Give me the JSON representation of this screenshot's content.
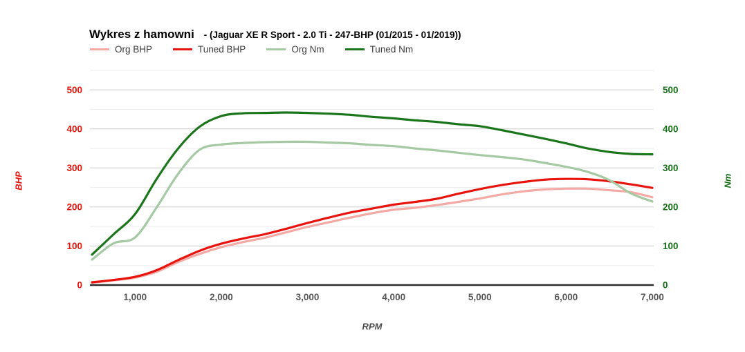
{
  "header": {
    "title": "Wykres z hamowni",
    "subtitle": "- (Jaguar XE R Sport - 2.0 Ti - 247-BHP (01/2015 - 01/2019))"
  },
  "legend": {
    "items": [
      {
        "label": "Org BHP",
        "color": "#f4a9a4"
      },
      {
        "label": "Tuned BHP",
        "color": "#e8130c"
      },
      {
        "label": "Org Nm",
        "color": "#a5c9a3"
      },
      {
        "label": "Tuned Nm",
        "color": "#1b751b"
      }
    ]
  },
  "chart_data": {
    "type": "line",
    "title": "Wykres z hamowni - (Jaguar XE R Sport - 2.0 Ti - 247-BHP (01/2015 - 01/2019))",
    "xlabel": "RPM",
    "x_range": [
      500,
      7000
    ],
    "x_ticks": [
      1000,
      2000,
      3000,
      4000,
      5000,
      6000,
      7000
    ],
    "x_tick_labels": [
      "1,000",
      "2,000",
      "3,000",
      "4,000",
      "5,000",
      "6,000",
      "7,000"
    ],
    "left_axis": {
      "label": "BHP",
      "min": 0,
      "max": 500,
      "headroom_max": 550,
      "ticks": [
        0,
        100,
        200,
        300,
        400,
        500
      ],
      "color": "#e8130c"
    },
    "right_axis": {
      "label": "Nm",
      "min": 0,
      "max": 500,
      "headroom_max": 550,
      "ticks": [
        0,
        100,
        200,
        300,
        400,
        500
      ],
      "color": "#157015"
    },
    "grid": {
      "horizontal": true,
      "vertical": false,
      "minor_step": 50,
      "major_color": "#cccccc",
      "minor_color": "#ededed",
      "baseline_color": "#2b2b2b"
    },
    "legend_position": "top",
    "x": [
      500,
      750,
      1000,
      1250,
      1500,
      1750,
      2000,
      2250,
      2500,
      2750,
      3000,
      3250,
      3500,
      3750,
      4000,
      4250,
      4500,
      4750,
      5000,
      5250,
      5500,
      5750,
      6000,
      6250,
      6500,
      6750,
      7000
    ],
    "series": [
      {
        "name": "Org BHP",
        "axis": "left",
        "color": "#f4a9a4",
        "peak": "247 BHP @ ~6,000 RPM",
        "values": [
          6,
          12,
          19,
          34,
          59,
          80,
          97,
          110,
          121,
          135,
          149,
          161,
          173,
          184,
          193,
          198,
          205,
          213,
          222,
          232,
          240,
          245,
          247,
          247,
          243,
          238,
          225
        ]
      },
      {
        "name": "Tuned BHP",
        "axis": "left",
        "color": "#e8130c",
        "peak": "272 BHP @ ~6,000 RPM",
        "values": [
          7,
          13,
          21,
          38,
          64,
          88,
          106,
          119,
          130,
          144,
          159,
          173,
          186,
          196,
          206,
          213,
          221,
          234,
          246,
          256,
          264,
          270,
          272,
          271,
          266,
          258,
          249
        ]
      },
      {
        "name": "Org Nm",
        "axis": "right",
        "color": "#a5c9a3",
        "peak": "367 Nm @ ~2,800 RPM",
        "values": [
          65,
          107,
          122,
          199,
          285,
          347,
          360,
          364,
          366,
          367,
          367,
          365,
          363,
          359,
          356,
          350,
          345,
          339,
          333,
          328,
          322,
          313,
          303,
          290,
          269,
          235,
          214
        ]
      },
      {
        "name": "Tuned Nm",
        "axis": "right",
        "color": "#1b751b",
        "peak": "442 Nm @ ~2,800 RPM",
        "values": [
          78,
          130,
          182,
          272,
          350,
          406,
          433,
          440,
          441,
          442,
          441,
          439,
          436,
          431,
          427,
          422,
          418,
          412,
          407,
          397,
          386,
          375,
          363,
          350,
          341,
          336,
          335
        ]
      }
    ]
  },
  "axis_titles": {
    "left": "BHP",
    "right": "Nm",
    "bottom": "RPM"
  }
}
